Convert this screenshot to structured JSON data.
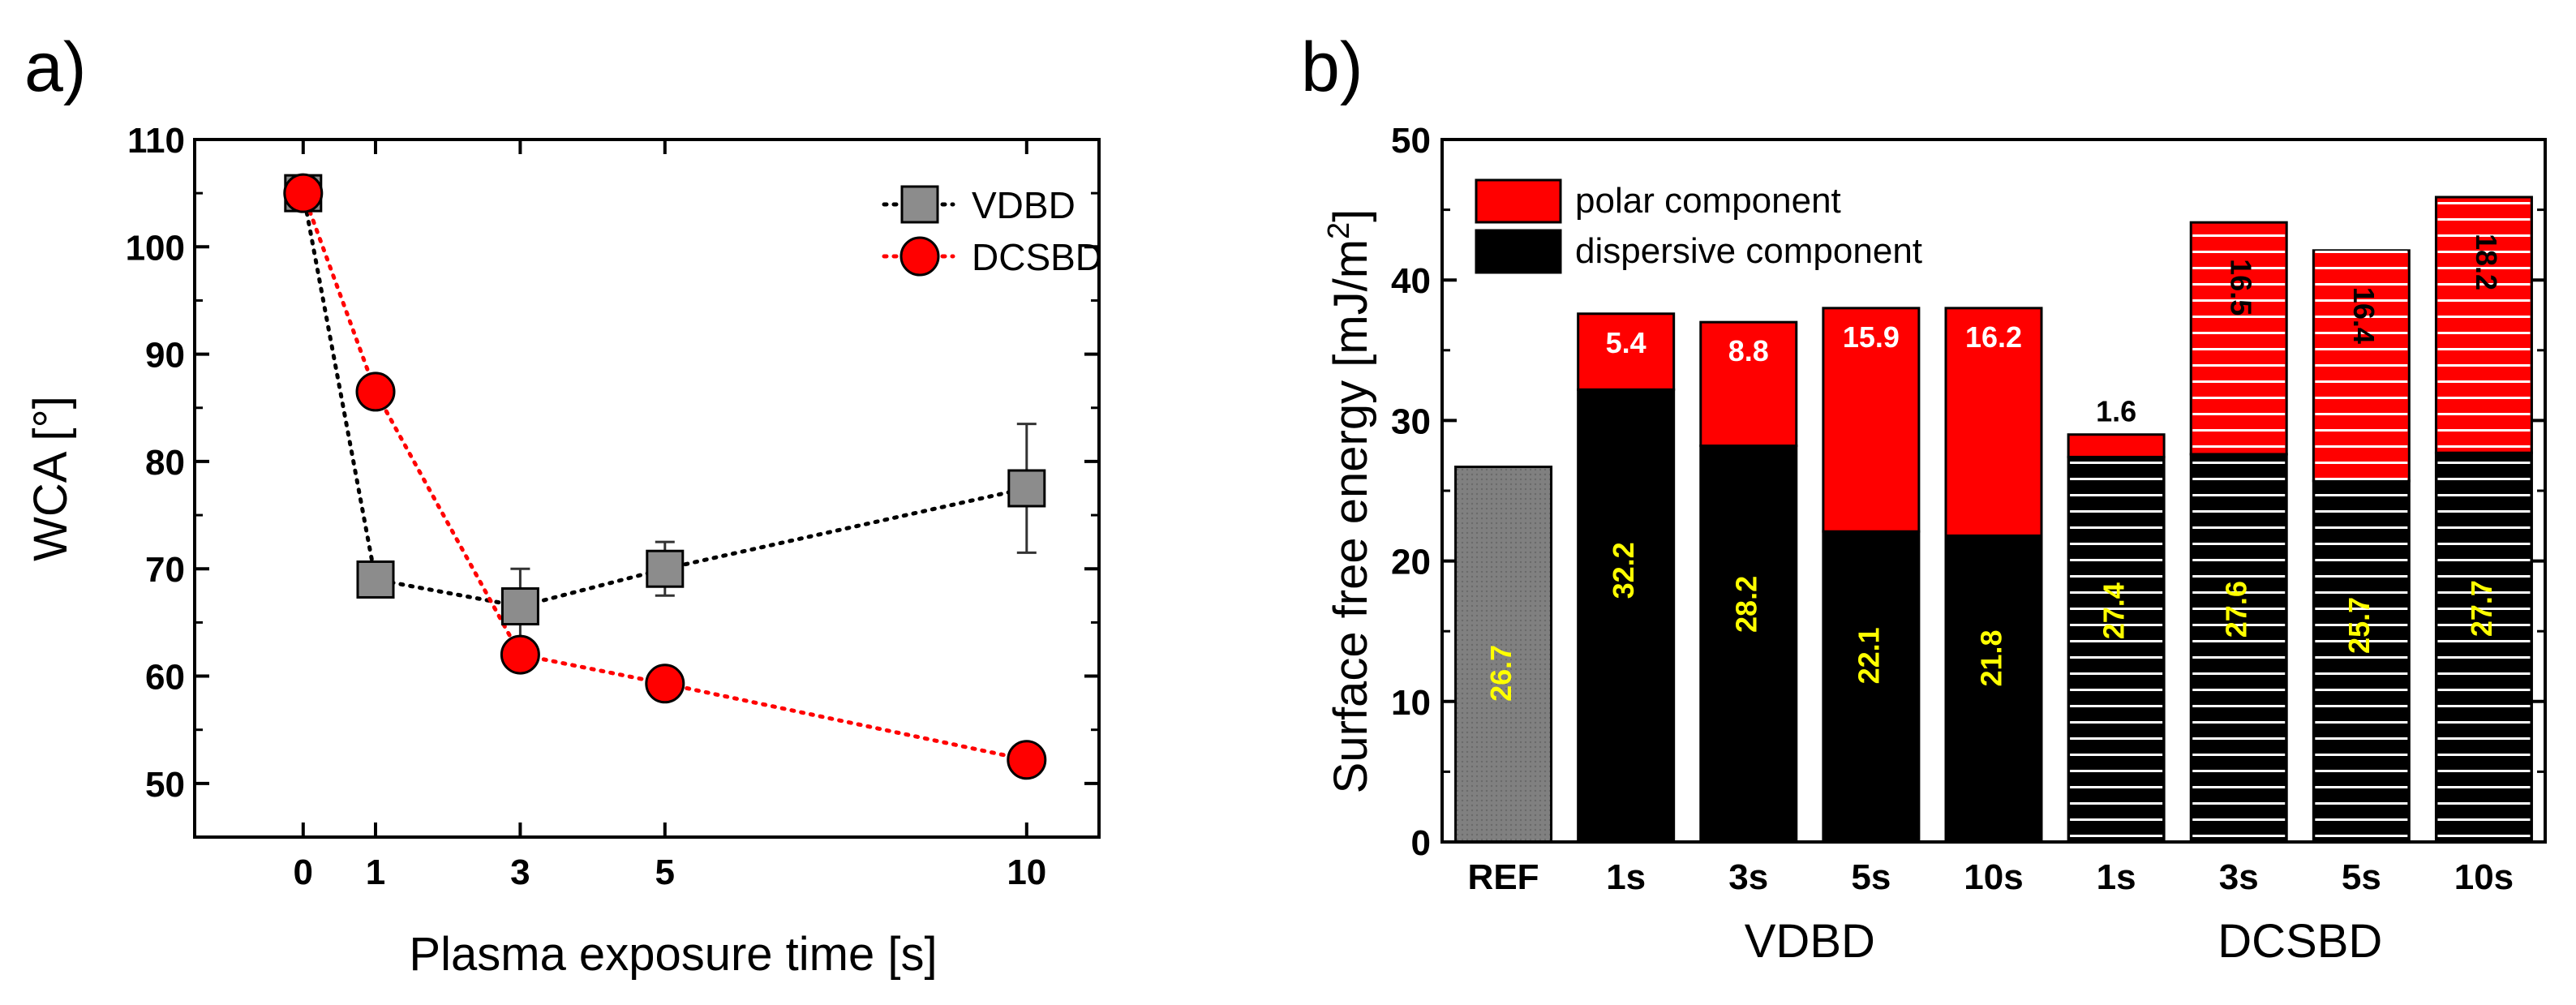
{
  "chart_data": [
    {
      "panel_label": "a)",
      "type": "scatter",
      "xlabel": "Plasma exposure time [s]",
      "ylabel": "WCA [°]",
      "xlim": [
        -1.5,
        11
      ],
      "ylim": [
        45,
        110
      ],
      "x_ticks": [
        0,
        1,
        3,
        5,
        10
      ],
      "y_ticks": [
        50,
        60,
        70,
        80,
        90,
        100,
        110
      ],
      "legend_position": "top-right",
      "series": [
        {
          "name": "VDBD",
          "marker": "square",
          "color": "#8c8c8c",
          "line_color": "#000000",
          "x": [
            0,
            1,
            3,
            5,
            10
          ],
          "y": [
            105,
            69,
            66.5,
            70,
            77.5
          ],
          "err": [
            1,
            1.2,
            3.5,
            2.5,
            6
          ]
        },
        {
          "name": "DCSBD",
          "marker": "circle",
          "color": "#ff0000",
          "line_color": "#ff0000",
          "x": [
            0,
            1,
            3,
            5,
            10
          ],
          "y": [
            105,
            86.5,
            62,
            59.3,
            52.2
          ],
          "err": [
            1,
            1,
            1.5,
            1.5,
            1
          ]
        }
      ]
    },
    {
      "panel_label": "b)",
      "type": "bar",
      "stacked": true,
      "ylabel_main": "Surface free energy [mJ/m",
      "ylabel_sup": "2",
      "ylabel_end": "]",
      "ylim": [
        0,
        50
      ],
      "y_ticks": [
        0,
        10,
        20,
        30,
        40,
        50
      ],
      "categories": [
        "REF",
        "1s",
        "3s",
        "5s",
        "10s",
        "1s",
        "3s",
        "5s",
        "10s"
      ],
      "groups": [
        {
          "label": "VDBD",
          "indices": [
            1,
            2,
            3,
            4
          ]
        },
        {
          "label": "DCSBD",
          "indices": [
            5,
            6,
            7,
            8
          ]
        }
      ],
      "legend_position": "top-left",
      "series": [
        {
          "name": "dispersive component",
          "color": "#000000",
          "values": [
            26.7,
            32.2,
            28.2,
            22.1,
            21.8,
            27.4,
            27.6,
            25.7,
            27.7
          ],
          "labels": [
            "26.7",
            "32.2",
            "28.2",
            "22.1",
            "21.8",
            "27.4",
            "27.6",
            "25.7",
            "27.7"
          ]
        },
        {
          "name": "polar component",
          "color": "#ff0000",
          "values": [
            0,
            5.4,
            8.8,
            15.9,
            16.2,
            1.6,
            16.5,
            16.4,
            18.2
          ],
          "labels": [
            "",
            "5.4",
            "8.8",
            "15.9",
            "16.2",
            "1.6",
            "16.5",
            "16.4",
            "18.2"
          ]
        }
      ],
      "ref_bar_color": "#7f7f7f",
      "hatched_indices": [
        5,
        6,
        7,
        8
      ]
    }
  ]
}
